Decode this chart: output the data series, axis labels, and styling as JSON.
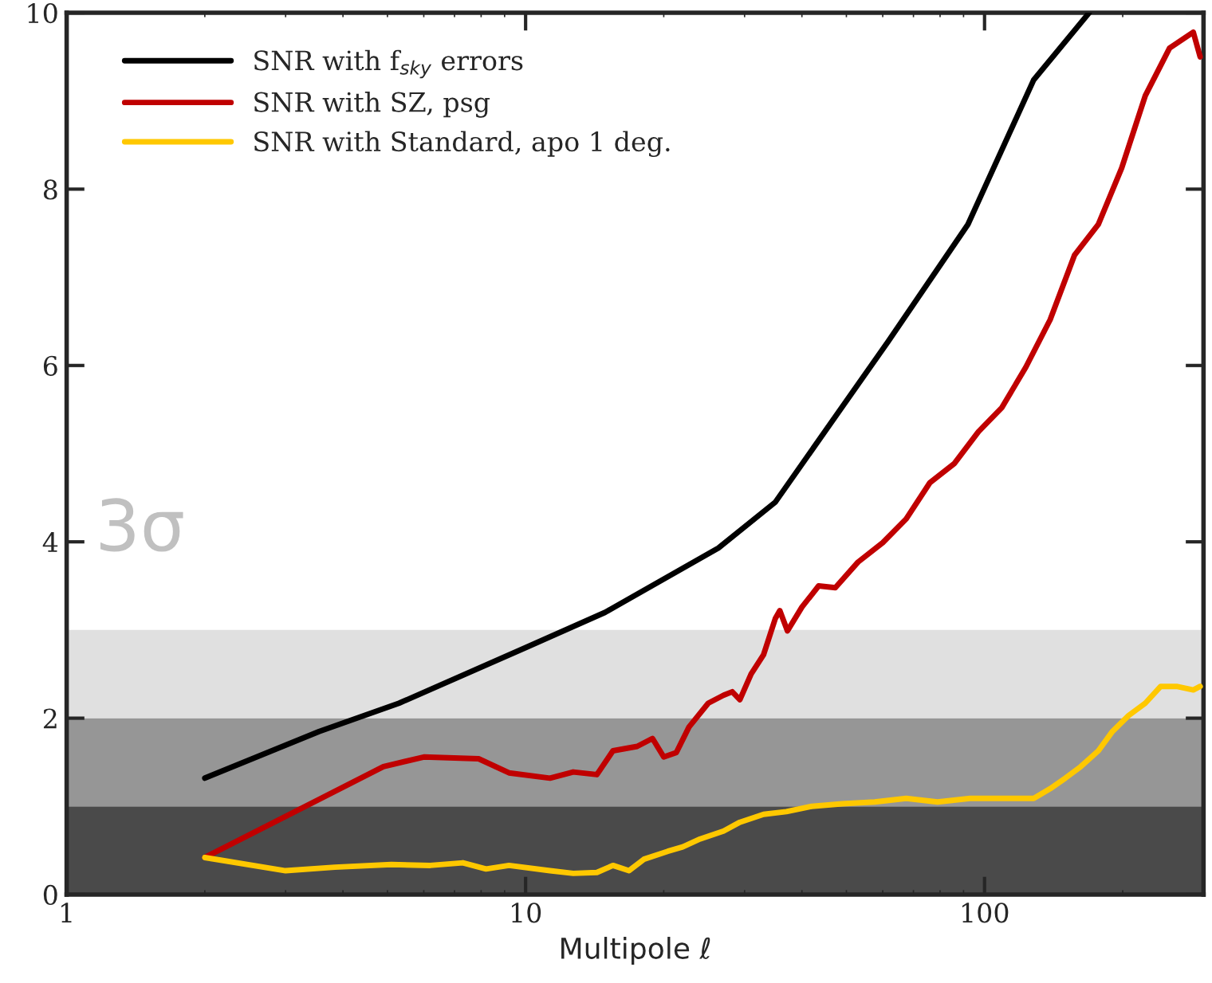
{
  "chart_data": {
    "type": "line",
    "xlabel": "Multipole ℓ",
    "log": "x",
    "xlim": [
      1,
      300
    ],
    "xticks": [
      1,
      10,
      100
    ],
    "ylim": [
      0,
      10
    ],
    "yticks": [
      0,
      2,
      4,
      6,
      8,
      10
    ],
    "grid": false,
    "legend": "top left",
    "marker": "none",
    "line_style": "solid",
    "annotations": [
      "3σ"
    ],
    "bands": [
      {
        "axis": "y",
        "from": 0,
        "to": 1,
        "color": "#4a4a4a"
      },
      {
        "axis": "y",
        "from": 1,
        "to": 2,
        "color": "#969696"
      },
      {
        "axis": "y",
        "from": 2,
        "to": 3,
        "color": "#e0e0e0"
      }
    ],
    "series": [
      {
        "name": "SNR with f$_{sky}$ errors",
        "color": "#000000",
        "x": [
          2,
          3.55,
          5.3,
          10,
          14.9,
          26.3,
          35,
          61.6,
          92,
          128,
          169
        ],
        "values": [
          1.32,
          1.85,
          2.17,
          2.8,
          3.2,
          3.93,
          4.45,
          6.27,
          7.6,
          9.24,
          10
        ]
      },
      {
        "name": "SNR with SZ, psg",
        "color": "#c00000",
        "x": [
          2,
          4.9,
          6,
          7.9,
          9.2,
          11.3,
          12.7,
          14.3,
          15.5,
          17.5,
          18.9,
          20,
          21.3,
          22.7,
          25,
          27,
          28.2,
          29.3,
          31,
          33,
          35,
          35.8,
          37.2,
          40,
          43.5,
          47.3,
          53,
          60,
          67.5,
          76,
          86,
          97,
          109,
          123,
          139,
          157,
          177,
          199,
          224,
          253,
          285,
          295
        ],
        "values": [
          0.42,
          1.45,
          1.56,
          1.54,
          1.38,
          1.32,
          1.39,
          1.36,
          1.63,
          1.68,
          1.77,
          1.56,
          1.61,
          1.9,
          2.17,
          2.26,
          2.3,
          2.21,
          2.5,
          2.72,
          3.13,
          3.22,
          2.99,
          3.26,
          3.5,
          3.48,
          3.77,
          3.99,
          4.26,
          4.67,
          4.89,
          5.25,
          5.52,
          5.98,
          6.52,
          7.25,
          7.6,
          8.24,
          9.06,
          9.6,
          9.78,
          9.5
        ]
      },
      {
        "name": "SNR with Standard, apo 1 deg.",
        "color": "#ffc800",
        "x": [
          2,
          3,
          3.84,
          5.1,
          6.2,
          7.3,
          8.2,
          9.2,
          11.3,
          12.7,
          14.3,
          15.5,
          16.8,
          18.1,
          20.4,
          22,
          24,
          27,
          29.3,
          33,
          37,
          42,
          49,
          57.6,
          67.5,
          79,
          93,
          109,
          128,
          139,
          150,
          162,
          177,
          190,
          206,
          224,
          242,
          262,
          285,
          295
        ],
        "values": [
          0.42,
          0.27,
          0.31,
          0.34,
          0.33,
          0.36,
          0.29,
          0.33,
          0.27,
          0.24,
          0.25,
          0.33,
          0.27,
          0.4,
          0.49,
          0.54,
          0.63,
          0.72,
          0.82,
          0.91,
          0.94,
          1.0,
          1.03,
          1.05,
          1.09,
          1.05,
          1.09,
          1.09,
          1.09,
          1.2,
          1.32,
          1.45,
          1.63,
          1.85,
          2.03,
          2.17,
          2.36,
          2.36,
          2.32,
          2.36
        ]
      }
    ]
  }
}
